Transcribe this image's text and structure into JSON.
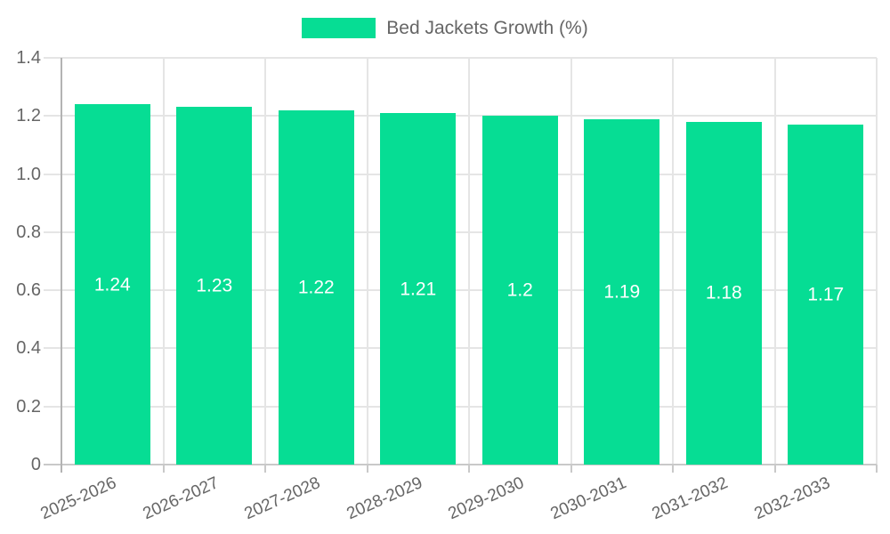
{
  "chart_data": {
    "type": "bar",
    "title": "",
    "legend": {
      "position": "top",
      "label": "Bed Jackets Growth (%)"
    },
    "categories": [
      "2025-2026",
      "2026-2027",
      "2027-2028",
      "2028-2029",
      "2029-2030",
      "2030-2031",
      "2031-2032",
      "2032-2033"
    ],
    "series": [
      {
        "name": "Bed Jackets Growth (%)",
        "values": [
          1.24,
          1.23,
          1.22,
          1.21,
          1.2,
          1.19,
          1.18,
          1.17
        ]
      }
    ],
    "value_labels": [
      "1.24",
      "1.23",
      "1.22",
      "1.21",
      "1.2",
      "1.19",
      "1.18",
      "1.17"
    ],
    "xlabel": "",
    "ylabel": "",
    "ylim": [
      0,
      1.4
    ],
    "ytick_labels": [
      "0",
      "0.2",
      "0.4",
      "0.6",
      "0.8",
      "1.0",
      "1.2",
      "1.4"
    ],
    "grid": true,
    "colors": {
      "bar": "#06DD94",
      "grid": "#e5e5e5",
      "y_axis": "#b3b3b3",
      "x_axis": "#c9c9c9",
      "tick": "#c9c9c9",
      "text": "#666666",
      "value_label": "#ffffff",
      "background": "#ffffff"
    }
  }
}
